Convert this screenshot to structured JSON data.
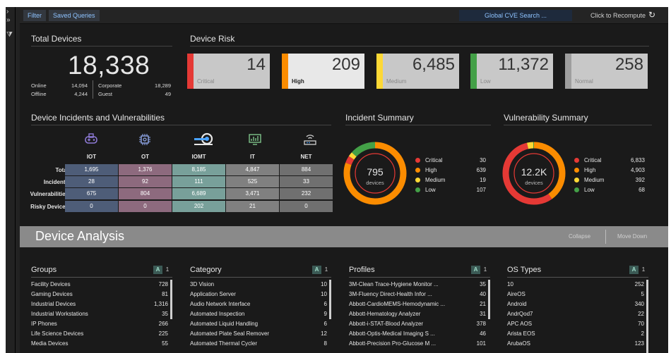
{
  "toolbar": {
    "filter_label": "Filter",
    "saved_queries_label": "Saved Queries",
    "cve_search_label": "Global CVE Search ...",
    "recompute_label": "Click to Recompute"
  },
  "total_devices": {
    "title": "Total Devices",
    "value": "18,338",
    "online_label": "Online",
    "online_value": "14,094",
    "offline_label": "Offline",
    "offline_value": "4,244",
    "corporate_label": "Corporate",
    "corporate_value": "18,289",
    "guest_label": "Guest",
    "guest_value": "49"
  },
  "device_risk": {
    "title": "Device Risk",
    "cards": [
      {
        "value": "14",
        "label": "Critical",
        "color": "#e53935"
      },
      {
        "value": "209",
        "label": "High",
        "color": "#fb8c00"
      },
      {
        "value": "6,485",
        "label": "Medium",
        "color": "#fdd835"
      },
      {
        "value": "11,372",
        "label": "Low",
        "color": "#43a047"
      },
      {
        "value": "258",
        "label": "Normal",
        "color": "#9e9e9e"
      }
    ]
  },
  "incidents": {
    "title": "Device Incidents and Vulnerabilities",
    "columns": [
      "IOT",
      "OT",
      "IOMT",
      "IT",
      "NET"
    ],
    "rows": [
      "Total",
      "Incidents",
      "Vulnerabilities",
      "Risky Devices"
    ],
    "values": [
      [
        "1,695",
        "1,376",
        "8,185",
        "4,847",
        "884"
      ],
      [
        "28",
        "92",
        "111",
        "525",
        "33"
      ],
      [
        "675",
        "804",
        "6,689",
        "3,471",
        "232"
      ],
      [
        "0",
        "0",
        "202",
        "21",
        "0"
      ]
    ],
    "column_colors": [
      "#4e5d78",
      "#8d6a7e",
      "#78a09a",
      "#808080",
      "#707070"
    ]
  },
  "incident_summary": {
    "title": "Incident Summary",
    "center_value": "795",
    "center_label": "devices",
    "items": [
      {
        "label": "Critical",
        "value": "30",
        "color": "#e53935"
      },
      {
        "label": "High",
        "value": "639",
        "color": "#fb8c00"
      },
      {
        "label": "Medium",
        "value": "19",
        "color": "#fdd835"
      },
      {
        "label": "Low",
        "value": "107",
        "color": "#43a047"
      }
    ]
  },
  "vulnerability_summary": {
    "title": "Vulnerability Summary",
    "center_value": "12.2K",
    "center_label": "devices",
    "items": [
      {
        "label": "Critical",
        "value": "6,833",
        "color": "#e53935"
      },
      {
        "label": "High",
        "value": "4,903",
        "color": "#fb8c00"
      },
      {
        "label": "Medium",
        "value": "392",
        "color": "#fdd835"
      },
      {
        "label": "Low",
        "value": "68",
        "color": "#43a047"
      }
    ]
  },
  "analysis": {
    "title": "Device Analysis",
    "collapse_label": "Collapse",
    "move_down_label": "Move Down"
  },
  "lists": [
    {
      "title": "Groups",
      "sort_a": "A",
      "sort_1": "1",
      "items": [
        {
          "name": "Facility Devices",
          "value": "728"
        },
        {
          "name": "Gaming Devices",
          "value": "81"
        },
        {
          "name": "Industrial Devices",
          "value": "1,316"
        },
        {
          "name": "Industrial Workstations",
          "value": "35"
        },
        {
          "name": "IP Phones",
          "value": "266"
        },
        {
          "name": "Life Science Devices",
          "value": "225"
        },
        {
          "name": "Media Devices",
          "value": "55"
        }
      ]
    },
    {
      "title": "Category",
      "sort_a": "A",
      "sort_1": "1",
      "items": [
        {
          "name": "3D Vision",
          "value": "10"
        },
        {
          "name": "Application Server",
          "value": "10"
        },
        {
          "name": "Audio Network Interface",
          "value": "6"
        },
        {
          "name": "Automated Inspection",
          "value": "9"
        },
        {
          "name": "Automated Liquid Handling",
          "value": "6"
        },
        {
          "name": "Automated Plate Seal Remover",
          "value": "12"
        },
        {
          "name": "Automated Thermal Cycler",
          "value": "8"
        }
      ]
    },
    {
      "title": "Profiles",
      "sort_a": "A",
      "sort_1": "1",
      "items": [
        {
          "name": "3M-Clean Trace-Hygiene Monitor ...",
          "value": "35"
        },
        {
          "name": "3M-Fluency Direct-Health Infor ...",
          "value": "40"
        },
        {
          "name": "Abbott-CardioMEMS-Hemodynamic ...",
          "value": "21"
        },
        {
          "name": "Abbott-Hematology Analyzer",
          "value": "31"
        },
        {
          "name": "Abbott-i-STAT-Blood Analyzer",
          "value": "378"
        },
        {
          "name": "Abbott-Optis-Medical Imaging S ...",
          "value": "46"
        },
        {
          "name": "Abbott-Precision Pro-Glucose M ...",
          "value": "101"
        }
      ]
    },
    {
      "title": "OS Types",
      "sort_a": "A",
      "sort_1": "1",
      "items": [
        {
          "name": "10",
          "value": "252"
        },
        {
          "name": "AireOS",
          "value": "5"
        },
        {
          "name": "Android",
          "value": "340"
        },
        {
          "name": "AndrQod7",
          "value": "22"
        },
        {
          "name": "APC AOS",
          "value": "70"
        },
        {
          "name": "Arista EOS",
          "value": "2"
        },
        {
          "name": "ArubaOS",
          "value": "123"
        }
      ]
    }
  ]
}
